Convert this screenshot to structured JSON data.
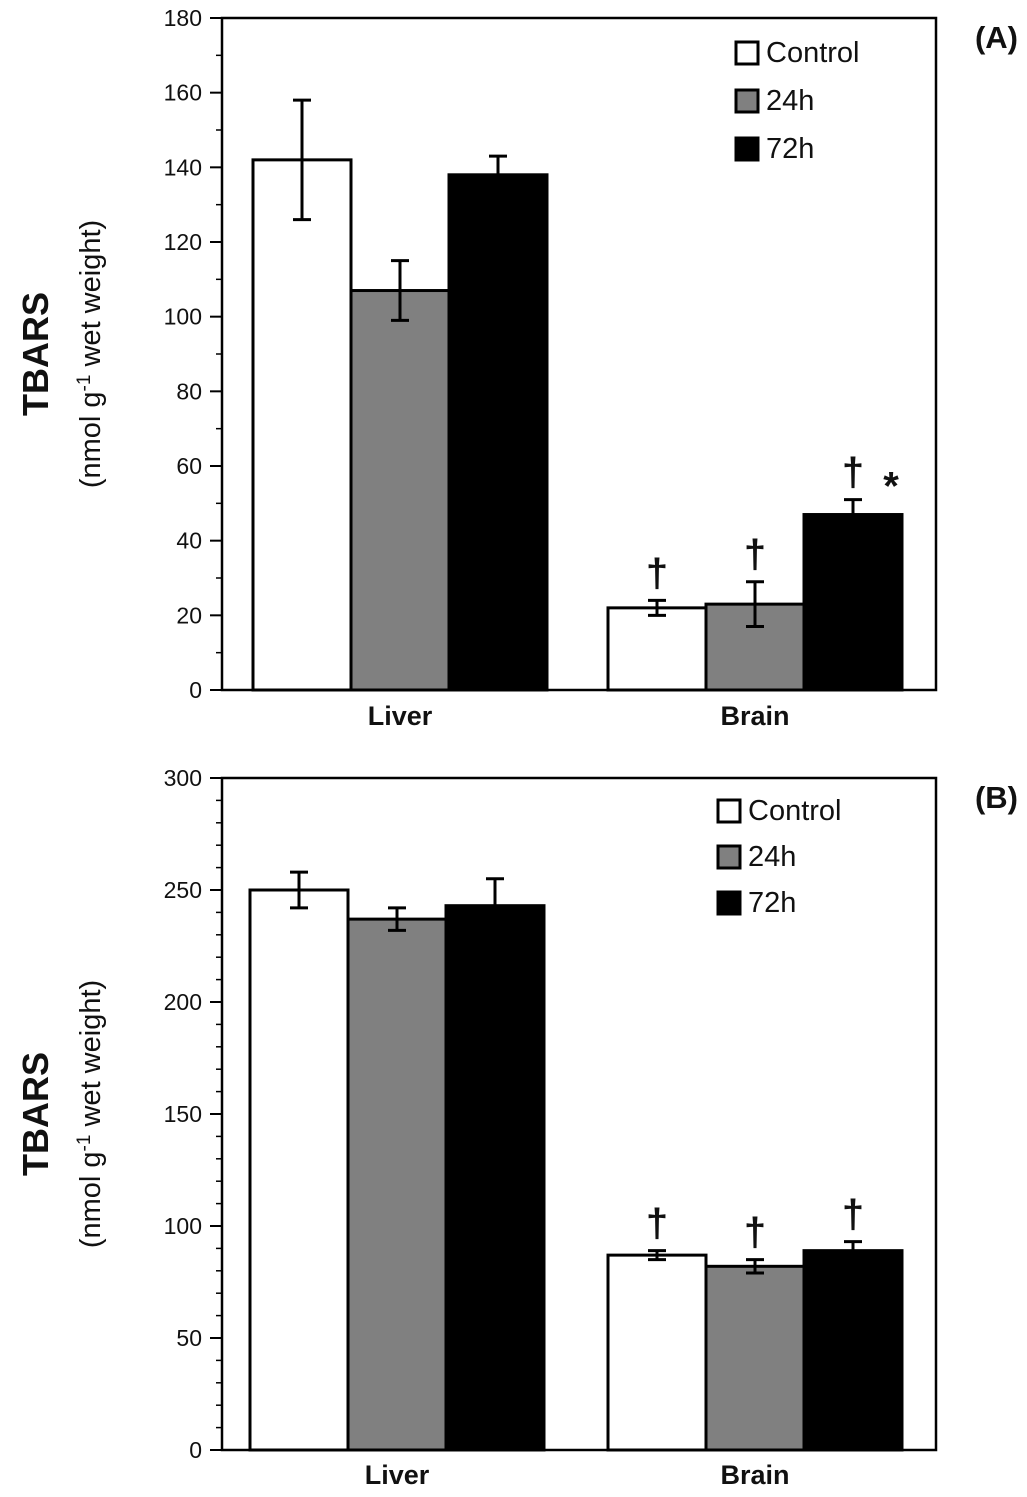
{
  "colors": {
    "Control": "#ffffff",
    "24h": "#808080",
    "72h": "#000000"
  },
  "chart_data": [
    {
      "type": "bar",
      "panel_label": "(A)",
      "title": "",
      "ylabel": "TBARS",
      "ylabel_units_prefix": "(nmol g",
      "ylabel_units_sup": "-1",
      "ylabel_units_suffix": " wet weight)",
      "xlabel": "",
      "ylim": [
        0,
        180
      ],
      "yticks": [
        0,
        20,
        40,
        60,
        80,
        100,
        120,
        140,
        160,
        180
      ],
      "categories": [
        "Liver",
        "Brain"
      ],
      "legend_position": "top-right",
      "series": [
        {
          "name": "Control",
          "values": [
            142,
            22
          ],
          "errors": [
            16,
            2
          ]
        },
        {
          "name": "24h",
          "values": [
            107,
            23
          ],
          "errors": [
            8,
            6
          ]
        },
        {
          "name": "72h",
          "values": [
            138,
            47
          ],
          "errors": [
            5,
            4
          ]
        }
      ],
      "annotations": [
        {
          "category": "Brain",
          "series": "Control",
          "text": "†"
        },
        {
          "category": "Brain",
          "series": "24h",
          "text": "†"
        },
        {
          "category": "Brain",
          "series": "72h",
          "text": "† *"
        }
      ]
    },
    {
      "type": "bar",
      "panel_label": "(B)",
      "title": "",
      "ylabel": "TBARS",
      "ylabel_units_prefix": "(nmol g",
      "ylabel_units_sup": "-1",
      "ylabel_units_suffix": " wet weight)",
      "xlabel": "",
      "ylim": [
        0,
        300
      ],
      "yticks": [
        0,
        50,
        100,
        150,
        200,
        250,
        300
      ],
      "categories": [
        "Liver",
        "Brain"
      ],
      "legend_position": "top-right",
      "series": [
        {
          "name": "Control",
          "values": [
            250,
            87
          ],
          "errors": [
            8,
            2
          ]
        },
        {
          "name": "24h",
          "values": [
            237,
            82
          ],
          "errors": [
            5,
            3
          ]
        },
        {
          "name": "72h",
          "values": [
            243,
            89
          ],
          "errors": [
            12,
            4
          ]
        }
      ],
      "annotations": [
        {
          "category": "Brain",
          "series": "Control",
          "text": "†"
        },
        {
          "category": "Brain",
          "series": "24h",
          "text": "†"
        },
        {
          "category": "Brain",
          "series": "72h",
          "text": "†"
        }
      ]
    }
  ]
}
